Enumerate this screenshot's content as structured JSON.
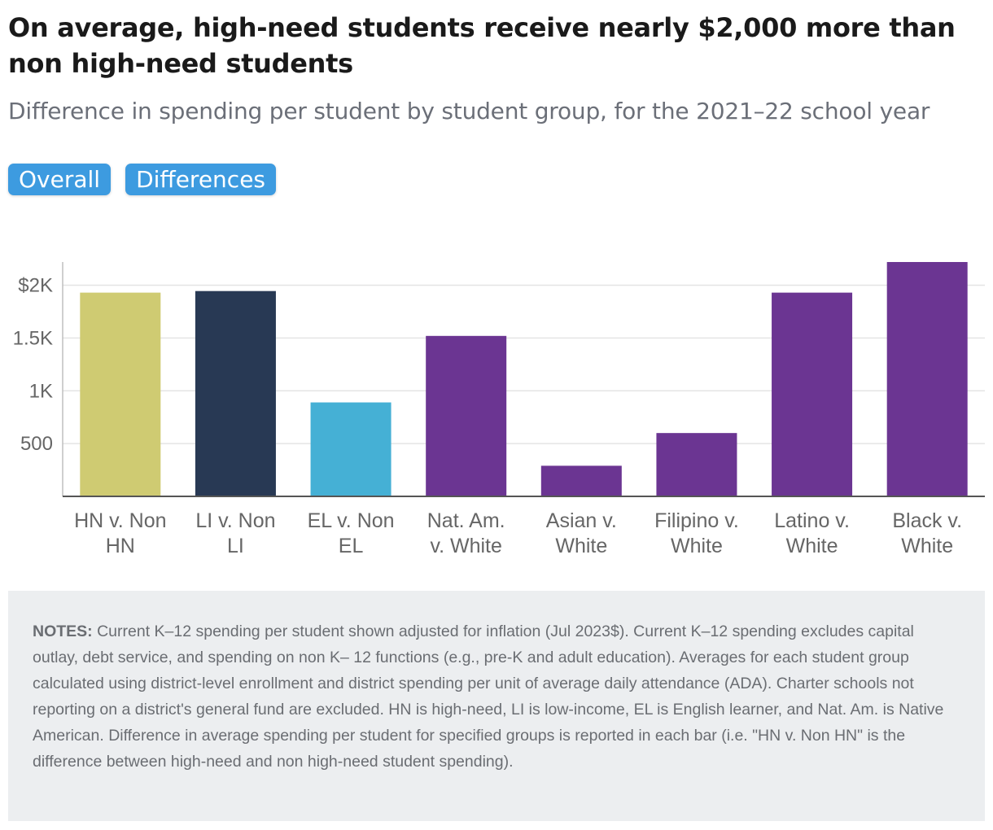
{
  "title": "On average, high-need students receive nearly $2,000 more than non high-need students",
  "subtitle": "Difference in spending per student by student group, for the 2021–22 school year",
  "toggles": {
    "overall": "Overall",
    "differences": "Differences"
  },
  "colors": {
    "hn": "#cfcb72",
    "li": "#283954",
    "el": "#45b0d5",
    "race": "#6b3592",
    "button": "#3d9be0",
    "notes_bg": "#eceef0"
  },
  "chart_data": {
    "type": "bar",
    "title": "Difference in spending per student by student group, for the 2021–22 school year",
    "xlabel": "",
    "ylabel": "",
    "ylim": [
      0,
      2220
    ],
    "yticks": [
      500,
      1000,
      1500,
      2000
    ],
    "ytick_labels": [
      "500",
      "1K",
      "1.5K",
      "$2K"
    ],
    "grid": true,
    "categories": [
      [
        "HN v. Non",
        "HN"
      ],
      [
        "LI v. Non",
        "LI"
      ],
      [
        "EL v. Non",
        "EL"
      ],
      [
        "Nat. Am.",
        "v. White"
      ],
      [
        "Asian v.",
        "White"
      ],
      [
        "Filipino v.",
        "White"
      ],
      [
        "Latino v.",
        "White"
      ],
      [
        "Black v.",
        "White"
      ]
    ],
    "values": [
      1930,
      1945,
      890,
      1520,
      290,
      600,
      1930,
      2220
    ],
    "bar_colors": [
      "#cfcb72",
      "#283954",
      "#45b0d5",
      "#6b3592",
      "#6b3592",
      "#6b3592",
      "#6b3592",
      "#6b3592"
    ]
  },
  "notes": {
    "label": "NOTES:",
    "text": "Current K–12 spending per student shown adjusted for inflation (Jul 2023$). Current K–12 spending excludes capital outlay, debt service, and spending on non K– 12 functions (e.g., pre-K and adult education). Averages for each student group calculated using district-level enrollment and district spending per unit of average daily attendance (ADA). Charter schools not reporting on a district's general fund are excluded. HN is high-need, LI is low-income, EL is English learner, and Nat. Am. is Native American. Difference in average spending per student for specified groups is reported in each bar (i.e. \"HN v. Non HN\" is the difference between high-need and non high-need student spending)."
  }
}
